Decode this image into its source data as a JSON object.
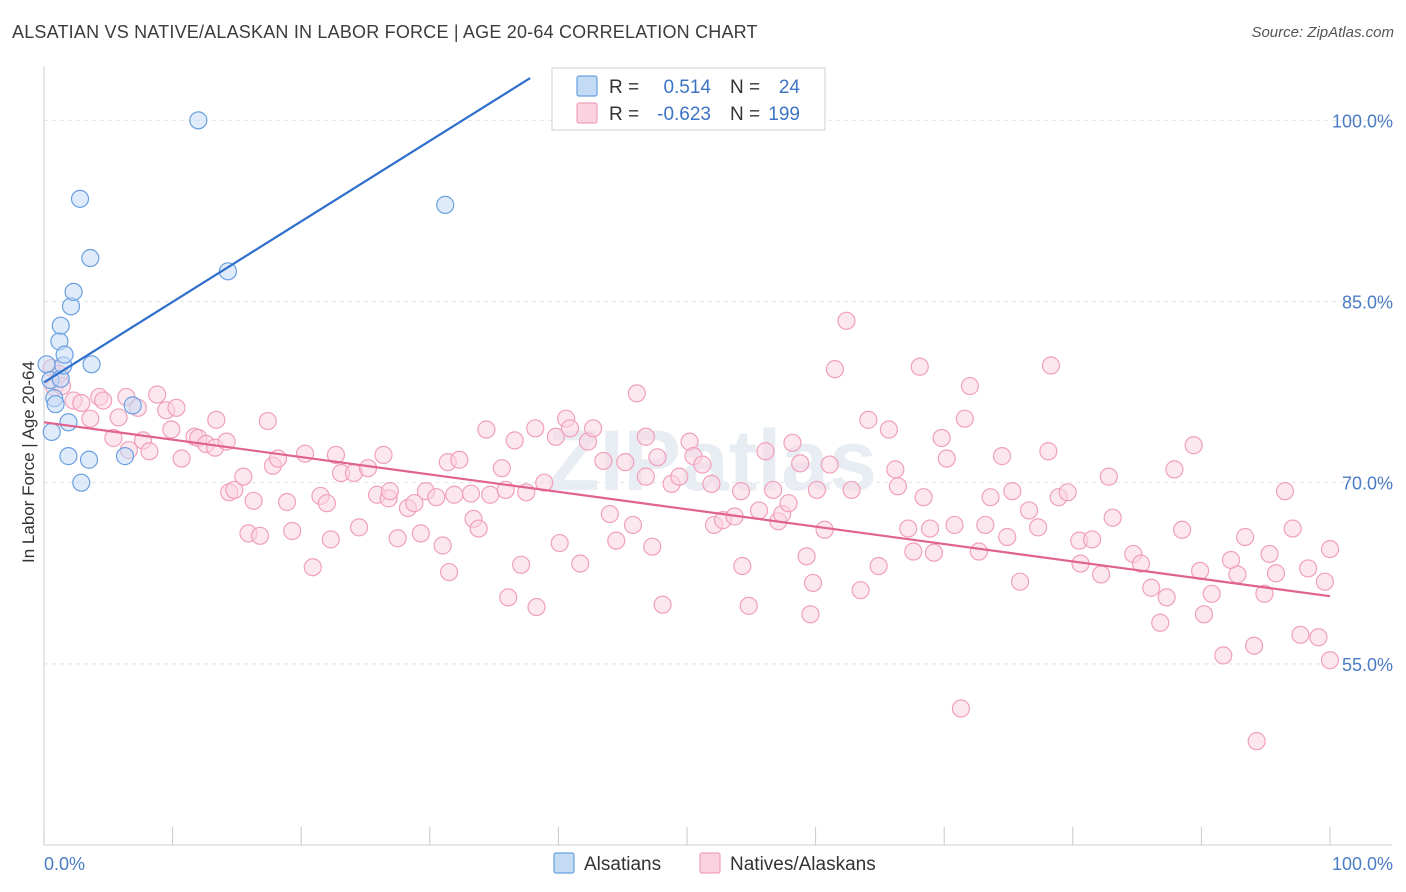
{
  "chart_data": {
    "type": "scatter",
    "title": "ALSATIAN VS NATIVE/ALASKAN IN LABOR FORCE | AGE 20-64 CORRELATION CHART",
    "source": "Source: ZipAtlas.com",
    "ylabel": "In Labor Force | Age 20-64",
    "watermark": "ZIPatlas",
    "xlim": [
      0,
      100
    ],
    "ylim": [
      40,
      104.5
    ],
    "x_tick_labels": [
      {
        "value": 0,
        "label": "0.0%"
      },
      {
        "value": 100,
        "label": "100.0%"
      }
    ],
    "y_tick_labels": [
      {
        "value": 100,
        "label": "100.0%"
      },
      {
        "value": 85,
        "label": "85.0%"
      },
      {
        "value": 70,
        "label": "70.0%"
      },
      {
        "value": 55,
        "label": "55.0%"
      }
    ],
    "legend_stats": [
      {
        "r_label": "R =",
        "r_value": "0.514",
        "n_label": "N =",
        "n_value": "24",
        "color": "#7eaee8"
      },
      {
        "r_label": "R =",
        "r_value": "-0.623",
        "n_label": "N =",
        "n_value": "199",
        "color": "#f08fb0"
      }
    ],
    "series": [
      {
        "name": "Alsatians",
        "marker_fill": "#c4dbf6",
        "marker_stroke": "#6aa0e0",
        "line_color": "#2f6fcc",
        "trend": {
          "x0": 0,
          "y0": 78.3,
          "x1": 37.8,
          "y1": 103.5
        },
        "points": [
          [
            0.2,
            79.8
          ],
          [
            0.5,
            78.5
          ],
          [
            0.8,
            77
          ],
          [
            0.9,
            76.5
          ],
          [
            0.6,
            74.2
          ],
          [
            1.3,
            78.6
          ],
          [
            1.5,
            79.7
          ],
          [
            1.2,
            81.7
          ],
          [
            1.3,
            83
          ],
          [
            1.6,
            80.6
          ],
          [
            2.1,
            84.6
          ],
          [
            2.3,
            85.8
          ],
          [
            2.8,
            93.5
          ],
          [
            3.6,
            88.6
          ],
          [
            3.7,
            79.8
          ],
          [
            1.9,
            75
          ],
          [
            1.9,
            72.2
          ],
          [
            2.9,
            70
          ],
          [
            3.5,
            71.9
          ],
          [
            6.3,
            72.2
          ],
          [
            6.9,
            76.4
          ],
          [
            12.0,
            100
          ],
          [
            14.3,
            87.5
          ],
          [
            31.2,
            93
          ]
        ]
      },
      {
        "name": "Natives/Alaskans",
        "marker_fill": "#fbd3e0",
        "marker_stroke": "#f0a0bb",
        "line_color": "#e0628e",
        "trend": {
          "x0": 0,
          "y0": 75.0,
          "x1": 100,
          "y1": 60.6
        },
        "points": [
          [
            0.6,
            79.5
          ],
          [
            0.8,
            77.9
          ],
          [
            1.2,
            79
          ],
          [
            1.4,
            78
          ],
          [
            2.3,
            76.8
          ],
          [
            2.9,
            76.6
          ],
          [
            3.6,
            75.3
          ],
          [
            4.3,
            77.1
          ],
          [
            4.6,
            76.8
          ],
          [
            5.4,
            73.7
          ],
          [
            5.8,
            75.4
          ],
          [
            6.4,
            77.1
          ],
          [
            6.6,
            72.7
          ],
          [
            7.3,
            76.2
          ],
          [
            7.7,
            73.5
          ],
          [
            8.2,
            72.6
          ],
          [
            8.8,
            77.3
          ],
          [
            9.5,
            76
          ],
          [
            9.9,
            74.4
          ],
          [
            10.3,
            76.2
          ],
          [
            10.7,
            72
          ],
          [
            11.7,
            73.8
          ],
          [
            12.0,
            73.7
          ],
          [
            12.6,
            73.2
          ],
          [
            13.3,
            72.9
          ],
          [
            13.4,
            75.2
          ],
          [
            14.2,
            73.4
          ],
          [
            14.4,
            69.2
          ],
          [
            14.8,
            69.4
          ],
          [
            15.5,
            70.5
          ],
          [
            15.9,
            65.8
          ],
          [
            16.3,
            68.5
          ],
          [
            16.8,
            65.6
          ],
          [
            17.4,
            75.1
          ],
          [
            17.8,
            71.4
          ],
          [
            18.2,
            72
          ],
          [
            18.9,
            68.4
          ],
          [
            19.3,
            66
          ],
          [
            20.3,
            72.4
          ],
          [
            20.9,
            63
          ],
          [
            21.5,
            68.9
          ],
          [
            22.0,
            68.3
          ],
          [
            22.3,
            65.3
          ],
          [
            22.7,
            72.3
          ],
          [
            23.1,
            70.8
          ],
          [
            24.1,
            70.8
          ],
          [
            24.5,
            66.3
          ],
          [
            25.2,
            71.2
          ],
          [
            25.9,
            69
          ],
          [
            26.4,
            72.3
          ],
          [
            26.8,
            68.7
          ],
          [
            26.9,
            69.3
          ],
          [
            27.5,
            65.4
          ],
          [
            28.3,
            67.9
          ],
          [
            28.8,
            68.3
          ],
          [
            29.3,
            65.8
          ],
          [
            29.7,
            69.3
          ],
          [
            30.5,
            68.8
          ],
          [
            31.4,
            71.7
          ],
          [
            31.9,
            69
          ],
          [
            31.0,
            64.8
          ],
          [
            31.5,
            62.6
          ],
          [
            32.3,
            71.9
          ],
          [
            33.2,
            69.1
          ],
          [
            33.4,
            67
          ],
          [
            33.8,
            66.2
          ],
          [
            34.4,
            74.4
          ],
          [
            34.7,
            69
          ],
          [
            35.6,
            71.2
          ],
          [
            35.9,
            69.4
          ],
          [
            36.1,
            60.5
          ],
          [
            36.6,
            73.5
          ],
          [
            37.1,
            63.2
          ],
          [
            37.5,
            69.2
          ],
          [
            38.2,
            74.5
          ],
          [
            38.3,
            59.7
          ],
          [
            38.9,
            70
          ],
          [
            39.8,
            73.8
          ],
          [
            40.1,
            65
          ],
          [
            40.6,
            75.3
          ],
          [
            40.9,
            74.5
          ],
          [
            41.7,
            63.3
          ],
          [
            42.3,
            73.4
          ],
          [
            42.7,
            74.5
          ],
          [
            43.5,
            71.8
          ],
          [
            44.0,
            67.4
          ],
          [
            44.5,
            65.2
          ],
          [
            45.2,
            71.7
          ],
          [
            45.8,
            66.5
          ],
          [
            46.1,
            77.4
          ],
          [
            46.8,
            73.8
          ],
          [
            46.8,
            70.5
          ],
          [
            47.3,
            64.7
          ],
          [
            47.7,
            72.1
          ],
          [
            48.1,
            59.9
          ],
          [
            48.8,
            69.9
          ],
          [
            49.4,
            70.5
          ],
          [
            50.2,
            73.4
          ],
          [
            50.5,
            72.2
          ],
          [
            51.2,
            71.5
          ],
          [
            51.9,
            69.9
          ],
          [
            52.1,
            66.5
          ],
          [
            52.8,
            66.9
          ],
          [
            53.7,
            67.2
          ],
          [
            54.2,
            69.3
          ],
          [
            54.3,
            63.1
          ],
          [
            54.8,
            59.8
          ],
          [
            55.6,
            67.7
          ],
          [
            56.1,
            72.6
          ],
          [
            56.7,
            69.4
          ],
          [
            57.1,
            66.8
          ],
          [
            57.4,
            67.4
          ],
          [
            57.9,
            68.3
          ],
          [
            58.2,
            73.3
          ],
          [
            58.8,
            71.6
          ],
          [
            59.3,
            63.9
          ],
          [
            59.6,
            59.1
          ],
          [
            59.8,
            61.7
          ],
          [
            60.1,
            69.4
          ],
          [
            60.7,
            66.1
          ],
          [
            61.1,
            71.5
          ],
          [
            61.5,
            79.4
          ],
          [
            62.4,
            83.4
          ],
          [
            62.8,
            69.4
          ],
          [
            63.5,
            61.1
          ],
          [
            64.1,
            75.2
          ],
          [
            64.9,
            63.1
          ],
          [
            65.7,
            74.4
          ],
          [
            66.2,
            71.1
          ],
          [
            66.4,
            69.7
          ],
          [
            67.2,
            66.2
          ],
          [
            67.6,
            64.3
          ],
          [
            68.1,
            79.6
          ],
          [
            68.4,
            68.8
          ],
          [
            68.9,
            66.2
          ],
          [
            69.2,
            64.2
          ],
          [
            69.8,
            73.7
          ],
          [
            70.2,
            72
          ],
          [
            70.8,
            66.5
          ],
          [
            71.3,
            51.3
          ],
          [
            71.6,
            75.3
          ],
          [
            72.0,
            78
          ],
          [
            72.7,
            64.3
          ],
          [
            73.2,
            66.5
          ],
          [
            73.6,
            68.8
          ],
          [
            74.5,
            72.2
          ],
          [
            74.9,
            65.5
          ],
          [
            75.3,
            69.3
          ],
          [
            75.9,
            61.8
          ],
          [
            76.6,
            67.7
          ],
          [
            77.3,
            66.3
          ],
          [
            78.1,
            72.6
          ],
          [
            78.3,
            79.7
          ],
          [
            78.9,
            68.8
          ],
          [
            79.6,
            69.2
          ],
          [
            80.5,
            65.2
          ],
          [
            80.6,
            63.3
          ],
          [
            81.5,
            65.3
          ],
          [
            82.2,
            62.4
          ],
          [
            82.8,
            70.5
          ],
          [
            83.1,
            67.1
          ],
          [
            84.7,
            64.1
          ],
          [
            85.3,
            63.3
          ],
          [
            86.1,
            61.3
          ],
          [
            86.8,
            58.4
          ],
          [
            87.3,
            60.5
          ],
          [
            87.9,
            71.1
          ],
          [
            88.5,
            66.1
          ],
          [
            89.4,
            73.1
          ],
          [
            89.9,
            62.7
          ],
          [
            90.2,
            59.1
          ],
          [
            90.8,
            60.8
          ],
          [
            91.7,
            55.7
          ],
          [
            92.3,
            63.6
          ],
          [
            92.8,
            62.4
          ],
          [
            93.4,
            65.5
          ],
          [
            94.1,
            56.5
          ],
          [
            94.3,
            48.6
          ],
          [
            94.9,
            60.8
          ],
          [
            95.3,
            64.1
          ],
          [
            95.8,
            62.5
          ],
          [
            96.5,
            69.3
          ],
          [
            97.1,
            66.2
          ],
          [
            97.7,
            57.4
          ],
          [
            98.3,
            62.9
          ],
          [
            99.1,
            57.2
          ],
          [
            99.6,
            61.8
          ],
          [
            100.0,
            64.5
          ],
          [
            100.0,
            55.3
          ]
        ]
      }
    ]
  }
}
